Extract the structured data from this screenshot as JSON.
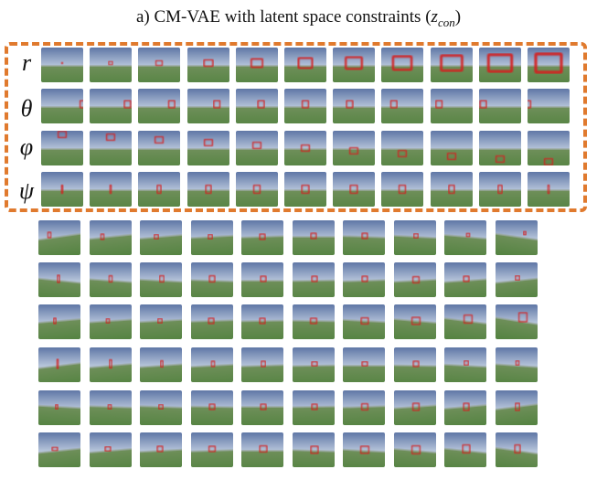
{
  "figure": {
    "title_prefix": "a) CM-VAE with latent space constraints (",
    "title_var": "z",
    "title_sub": "con",
    "title_suffix": ")"
  },
  "row_labels": [
    "r",
    "θ",
    "φ",
    "ψ"
  ],
  "colors": {
    "constraint_box": "#e07a2e",
    "gate_red": "#d42020",
    "sky": "#8fa4c8",
    "grass": "#4f7f3a"
  },
  "grid": {
    "constrained_rows": 4,
    "unconstrained_rows": 6,
    "cols_constrained": 11,
    "cols_unconstrained": 10
  }
}
